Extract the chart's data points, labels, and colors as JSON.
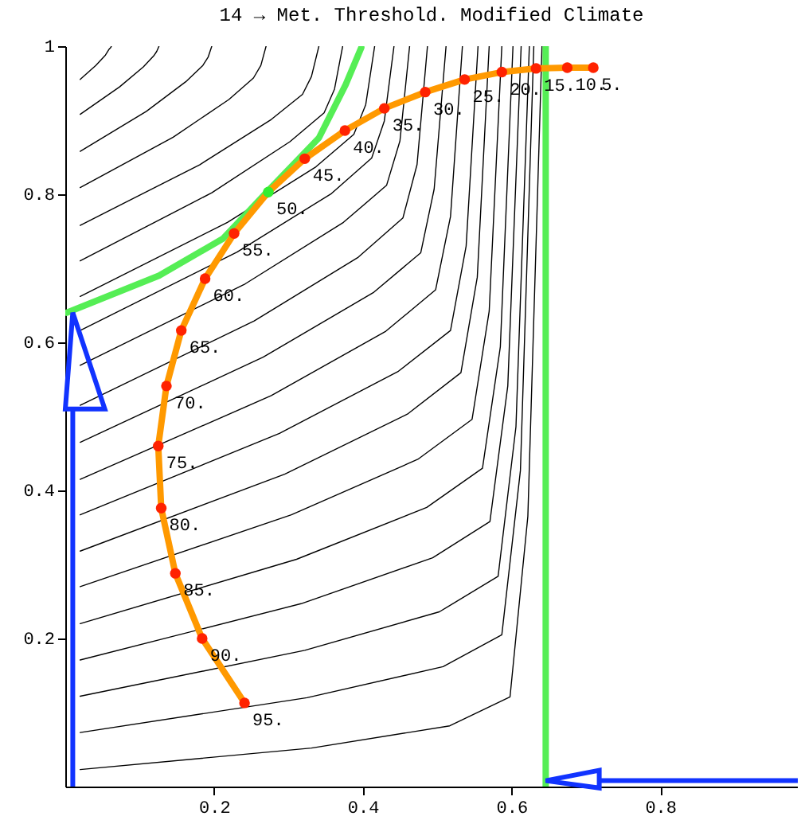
{
  "chart_data": {
    "type": "line",
    "title": "14 → Met. Threshold. Modified Climate",
    "xlim": [
      0,
      0.985
    ],
    "ylim": [
      0,
      1
    ],
    "xticks": [
      0.2,
      0.4,
      0.6,
      0.8
    ],
    "yticks": [
      0.2,
      0.4,
      0.6,
      0.8,
      1
    ],
    "grid": false,
    "series": [
      {
        "color": "#000000",
        "x": [
          0.02,
          0.041,
          0.054,
          0.059,
          0.061,
          0.062
        ],
        "values": [
          0.955,
          0.974,
          0.988,
          0.996,
          0.998,
          1
        ]
      },
      {
        "color": "#000000",
        "x": [
          0.02,
          0.073,
          0.105,
          0.119,
          0.123,
          0.126
        ],
        "values": [
          0.908,
          0.945,
          0.972,
          0.987,
          0.993,
          1
        ]
      },
      {
        "color": "#000000",
        "x": [
          0.02,
          0.109,
          0.162,
          0.185,
          0.192,
          0.197
        ],
        "values": [
          0.858,
          0.912,
          0.952,
          0.974,
          0.985,
          1
        ]
      },
      {
        "color": "#000000",
        "x": [
          0.02,
          0.145,
          0.22,
          0.253,
          0.263,
          0.27
        ],
        "values": [
          0.809,
          0.877,
          0.928,
          0.957,
          0.974,
          1
        ]
      },
      {
        "color": "#000000",
        "x": [
          0.02,
          0.181,
          0.277,
          0.319,
          0.331,
          0.341
        ],
        "values": [
          0.758,
          0.84,
          0.901,
          0.935,
          0.959,
          1
        ]
      },
      {
        "color": "#000000",
        "x": [
          0.02,
          0.197,
          0.302,
          0.348,
          0.362,
          0.373
        ],
        "values": [
          0.71,
          0.802,
          0.871,
          0.91,
          0.942,
          1
        ]
      },
      {
        "color": "#000000",
        "x": [
          0.02,
          0.218,
          0.337,
          0.388,
          0.404,
          0.416
        ],
        "values": [
          0.662,
          0.762,
          0.837,
          0.881,
          0.921,
          1
        ]
      },
      {
        "color": "#000000",
        "x": [
          0.02,
          0.231,
          0.358,
          0.412,
          0.429,
          0.442
        ],
        "values": [
          0.616,
          0.722,
          0.801,
          0.849,
          0.899,
          1
        ]
      },
      {
        "color": "#000000",
        "x": [
          0.02,
          0.242,
          0.374,
          0.432,
          0.45,
          0.463
        ],
        "values": [
          0.569,
          0.679,
          0.762,
          0.812,
          0.872,
          1
        ]
      },
      {
        "color": "#000000",
        "x": [
          0.02,
          0.254,
          0.394,
          0.454,
          0.473,
          0.487
        ],
        "values": [
          0.515,
          0.629,
          0.715,
          0.768,
          0.84,
          1
        ]
      },
      {
        "color": "#000000",
        "x": [
          0.02,
          0.266,
          0.414,
          0.478,
          0.496,
          0.512
        ],
        "values": [
          0.465,
          0.58,
          0.667,
          0.721,
          0.807,
          1
        ]
      },
      {
        "color": "#000000",
        "x": [
          0.02,
          0.277,
          0.431,
          0.498,
          0.518,
          0.534
        ],
        "values": [
          0.415,
          0.528,
          0.615,
          0.671,
          0.77,
          1
        ]
      },
      {
        "color": "#000000",
        "x": [
          0.02,
          0.288,
          0.448,
          0.518,
          0.539,
          0.555
        ],
        "values": [
          0.367,
          0.477,
          0.561,
          0.616,
          0.73,
          1
        ]
      },
      {
        "color": "#000000",
        "x": [
          0.02,
          0.295,
          0.46,
          0.532,
          0.554,
          0.57
        ],
        "values": [
          0.318,
          0.422,
          0.503,
          0.559,
          0.688,
          1
        ]
      },
      {
        "color": "#000000",
        "x": [
          0.02,
          0.304,
          0.474,
          0.547,
          0.57,
          0.587
        ],
        "values": [
          0.27,
          0.367,
          0.442,
          0.496,
          0.642,
          1
        ]
      },
      {
        "color": "#000000",
        "x": [
          0.02,
          0.311,
          0.486,
          0.561,
          0.585,
          0.602
        ],
        "values": [
          0.22,
          0.307,
          0.377,
          0.43,
          0.594,
          1
        ]
      },
      {
        "color": "#000000",
        "x": [
          0.02,
          0.317,
          0.494,
          0.571,
          0.595,
          0.613
        ],
        "values": [
          0.171,
          0.247,
          0.309,
          0.358,
          0.541,
          1
        ]
      },
      {
        "color": "#000000",
        "x": [
          0.02,
          0.322,
          0.503,
          0.582,
          0.606,
          0.624
        ],
        "values": [
          0.122,
          0.184,
          0.236,
          0.284,
          0.486,
          1
        ]
      },
      {
        "color": "#000000",
        "x": [
          0.02,
          0.325,
          0.508,
          0.587,
          0.612,
          0.63
        ],
        "values": [
          0.073,
          0.12,
          0.162,
          0.205,
          0.427,
          1
        ]
      },
      {
        "color": "#000000",
        "x": [
          0.02,
          0.331,
          0.517,
          0.598,
          0.622,
          0.641
        ],
        "values": [
          0.023,
          0.052,
          0.082,
          0.121,
          0.365,
          1
        ]
      },
      {
        "color": "#55ee55",
        "x": [
          0.002,
          0.126,
          0.212,
          0.273,
          0.341,
          0.377,
          0.398
        ],
        "values": [
          0.64,
          0.69,
          0.74,
          0.805,
          0.876,
          0.948,
          0.998
        ]
      },
      {
        "color": "#ff9900",
        "x": [
          0.71,
          0.675,
          0.633,
          0.587,
          0.537,
          0.484,
          0.429,
          0.376,
          0.322,
          0.273,
          0.227,
          0.188,
          0.156,
          0.136,
          0.125,
          0.129,
          0.148,
          0.184,
          0.241
        ],
        "values": [
          0.971,
          0.971,
          0.97,
          0.965,
          0.955,
          0.938,
          0.916,
          0.886,
          0.848,
          0.803,
          0.747,
          0.686,
          0.616,
          0.541,
          0.46,
          0.376,
          0.288,
          0.2,
          0.113
        ]
      },
      {
        "type": "scatter",
        "colors": [
          "#ff2200",
          "#ff2200",
          "#ff2200",
          "#ff2200",
          "#ff2200",
          "#ff2200",
          "#ff2200",
          "#ff2200",
          "#ff2200",
          "#33ee33",
          "#ff2200",
          "#ff2200",
          "#ff2200",
          "#ff2200",
          "#ff2200",
          "#ff2200",
          "#ff2200",
          "#ff2200",
          "#ff2200"
        ],
        "x": [
          0.71,
          0.675,
          0.633,
          0.587,
          0.537,
          0.484,
          0.429,
          0.376,
          0.322,
          0.273,
          0.227,
          0.188,
          0.156,
          0.136,
          0.125,
          0.129,
          0.148,
          0.184,
          0.241
        ],
        "values": [
          0.971,
          0.971,
          0.97,
          0.965,
          0.955,
          0.938,
          0.916,
          0.886,
          0.848,
          0.803,
          0.747,
          0.686,
          0.616,
          0.541,
          0.46,
          0.376,
          0.288,
          0.2,
          0.113
        ]
      }
    ],
    "annotations": [
      {
        "text": "5.",
        "x": 0.71,
        "y": 0.971
      },
      {
        "text": "10.",
        "x": 0.675,
        "y": 0.971
      },
      {
        "text": "15.",
        "x": 0.633,
        "y": 0.97
      },
      {
        "text": "20.",
        "x": 0.587,
        "y": 0.965
      },
      {
        "text": "25.",
        "x": 0.537,
        "y": 0.955
      },
      {
        "text": "30.",
        "x": 0.484,
        "y": 0.938
      },
      {
        "text": "35.",
        "x": 0.429,
        "y": 0.916
      },
      {
        "text": "40.",
        "x": 0.376,
        "y": 0.886
      },
      {
        "text": "45.",
        "x": 0.322,
        "y": 0.848
      },
      {
        "text": "50.",
        "x": 0.273,
        "y": 0.803
      },
      {
        "text": "55.",
        "x": 0.227,
        "y": 0.747
      },
      {
        "text": "60.",
        "x": 0.188,
        "y": 0.686
      },
      {
        "text": "65.",
        "x": 0.156,
        "y": 0.616
      },
      {
        "text": "70.",
        "x": 0.136,
        "y": 0.541
      },
      {
        "text": "75.",
        "x": 0.125,
        "y": 0.46
      },
      {
        "text": "80.",
        "x": 0.129,
        "y": 0.376
      },
      {
        "text": "85.",
        "x": 0.148,
        "y": 0.288
      },
      {
        "text": "90.",
        "x": 0.184,
        "y": 0.2
      },
      {
        "text": "95.",
        "x": 0.241,
        "y": 0.113
      }
    ],
    "ref_lines": [
      {
        "axis": "x",
        "value": 0.646,
        "color": "#55ee55"
      }
    ]
  }
}
